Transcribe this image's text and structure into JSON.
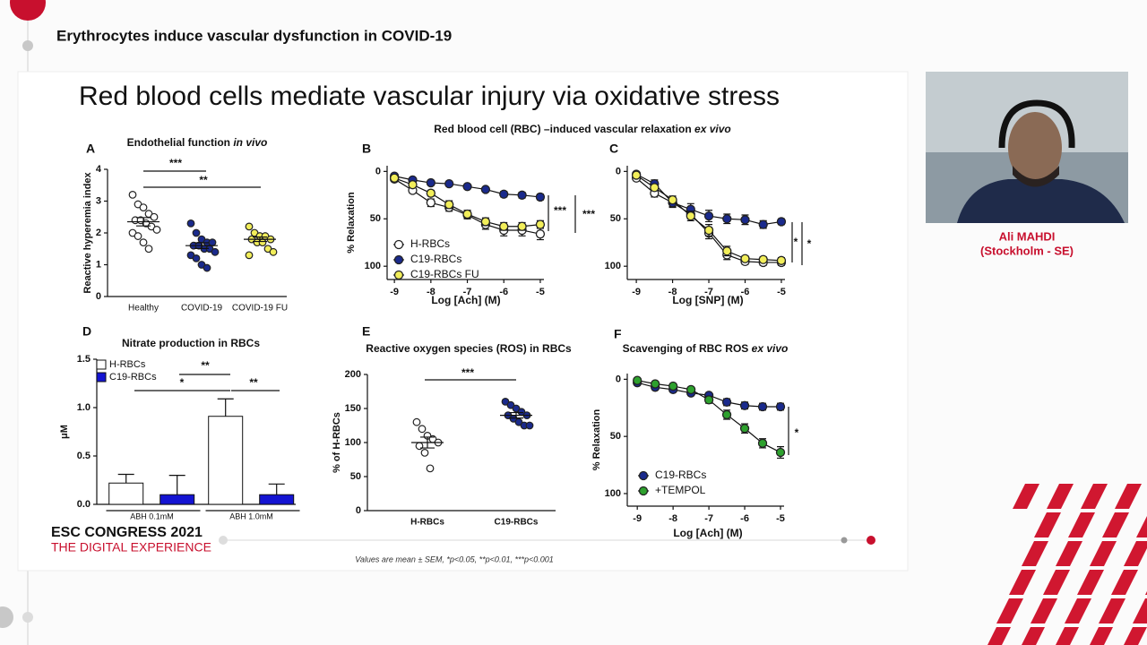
{
  "header": {
    "title": "Erythrocytes induce vascular dysfunction in COVID-19"
  },
  "slide": {
    "title": "Red blood cells mediate vascular injury via oxidative stress",
    "subtitle": "Red blood cell (RBC) –induced vascular relaxation",
    "subtitle_em": "ex vivo",
    "footnote": "Values are mean ± SEM, *p<0.05, **p<0.01, ***p<0.001",
    "logo_line1": "ESC CONGRESS 2021",
    "logo_line2": "THE DIGITAL EXPERIENCE"
  },
  "speaker": {
    "name": "Ali MAHDI",
    "location": "(Stockholm - SE)"
  },
  "chart_data": [
    {
      "type": "dot_plot",
      "panel": "A",
      "title": "Endothelial function",
      "title_em": "in vivo",
      "ylabel": "Reactive hyperemia index",
      "ylim": [
        0,
        4
      ],
      "yticks": [
        0,
        1,
        2,
        3,
        4
      ],
      "groups": [
        {
          "name": "Healthy",
          "color": "#ffffff",
          "values": [
            3.2,
            2.9,
            2.8,
            2.6,
            2.5,
            2.4,
            2.4,
            2.3,
            2.2,
            2.1,
            2.0,
            1.9,
            1.7,
            1.5
          ],
          "mean": 2.35,
          "sem": 0.13
        },
        {
          "name": "COVID-19",
          "color": "#1a2a8c",
          "values": [
            2.3,
            2.0,
            1.8,
            1.7,
            1.7,
            1.6,
            1.6,
            1.5,
            1.5,
            1.4,
            1.3,
            1.2,
            1.0,
            0.9
          ],
          "mean": 1.6,
          "sem": 0.09
        },
        {
          "name": "COVID-19 FU",
          "color": "#f2ee5a",
          "values": [
            2.2,
            2.0,
            1.9,
            1.9,
            1.8,
            1.8,
            1.7,
            1.7,
            1.5,
            1.4,
            1.3
          ],
          "mean": 1.8,
          "sem": 0.07
        }
      ],
      "annotations": [
        "***",
        "**"
      ]
    },
    {
      "type": "line",
      "panel": "B",
      "xlabel": "Log [Ach] (M)",
      "ylabel": "% Relaxation",
      "x": [
        -9,
        -8.5,
        -8,
        -7.5,
        -7,
        -6.5,
        -6,
        -5.5,
        -5
      ],
      "xlim": [
        -9.2,
        -4.9
      ],
      "xticks": [
        -9,
        -8,
        -7,
        -6,
        -5
      ],
      "ylim": [
        114,
        -6
      ],
      "yticks": [
        0,
        50,
        100
      ],
      "legend": "lower left",
      "series": [
        {
          "name": "H-RBCs",
          "color": "#ffffff",
          "values": [
            8,
            20,
            33,
            38,
            46,
            56,
            62,
            62,
            66
          ],
          "errors": [
            2,
            3,
            4,
            4,
            4,
            5,
            6,
            6,
            6
          ]
        },
        {
          "name": "C19-RBCs",
          "color": "#1a2a8c",
          "values": [
            5,
            9,
            12,
            13,
            16,
            19,
            24,
            25,
            27
          ],
          "errors": [
            1,
            2,
            2,
            2,
            2,
            2,
            3,
            3,
            3
          ]
        },
        {
          "name": "C19-RBCs FU",
          "color": "#f2ee5a",
          "values": [
            7,
            14,
            23,
            35,
            45,
            53,
            58,
            58,
            56
          ],
          "errors": [
            2,
            3,
            3,
            4,
            4,
            4,
            4,
            4,
            4
          ]
        }
      ],
      "annotations": [
        "***",
        "***"
      ]
    },
    {
      "type": "line",
      "panel": "C",
      "xlabel": "Log [SNP] (M)",
      "x": [
        -9,
        -8.5,
        -8,
        -7.5,
        -7,
        -6.5,
        -6,
        -5.5,
        -5
      ],
      "xlim": [
        -9.25,
        -4.9
      ],
      "xticks": [
        -9,
        -8,
        -7,
        -6,
        -5
      ],
      "ylim": [
        114,
        -6
      ],
      "yticks": [
        0,
        50,
        100
      ],
      "series": [
        {
          "color": "#ffffff",
          "values": [
            7,
            23,
            33,
            45,
            65,
            88,
            95,
            96,
            96
          ],
          "errors": [
            2,
            4,
            4,
            5,
            6,
            5,
            3,
            3,
            3
          ]
        },
        {
          "color": "#1a2a8c",
          "values": [
            3,
            13,
            33,
            40,
            47,
            50,
            51,
            56,
            53
          ],
          "errors": [
            2,
            4,
            5,
            6,
            6,
            5,
            5,
            4,
            3
          ]
        },
        {
          "color": "#f2ee5a",
          "values": [
            4,
            17,
            30,
            47,
            62,
            84,
            92,
            93,
            94
          ],
          "errors": [
            2,
            3,
            4,
            5,
            6,
            5,
            3,
            3,
            3
          ]
        }
      ],
      "annotations": [
        "*",
        "*"
      ]
    },
    {
      "type": "bar",
      "panel": "D",
      "title": "Nitrate production in RBCs",
      "ylabel": "μM",
      "categories": [
        "ABH 0.1mM",
        "ABH 1.0mM"
      ],
      "ylim": [
        0,
        1.5
      ],
      "yticks": [
        {
          "value": 0,
          "label": "0.0"
        },
        {
          "value": 0.5,
          "label": "0.5"
        },
        {
          "value": 1,
          "label": "1.0"
        },
        {
          "value": 1.5,
          "label": "1.5"
        }
      ],
      "legend": "upper left",
      "series": [
        {
          "name": "H-RBCs",
          "color": "#ffffff",
          "values": [
            0.22,
            0.91
          ],
          "errors": [
            0.09,
            0.18
          ]
        },
        {
          "name": "C19-RBCs",
          "color": "#1414d2",
          "values": [
            0.1,
            0.1
          ],
          "errors": [
            0.2,
            0.11
          ]
        }
      ],
      "annotations": [
        "**",
        "*",
        "**"
      ]
    },
    {
      "type": "dot_plot",
      "panel": "E",
      "title": "Reactive oxygen species (ROS) in RBCs",
      "ylabel": "% of H-RBCs",
      "ylim": [
        0,
        200
      ],
      "yticks": [
        0,
        50,
        100,
        150,
        200
      ],
      "groups": [
        {
          "name": "H-RBCs",
          "color": "#ffffff",
          "values": [
            130,
            120,
            110,
            105,
            100,
            95,
            85,
            62
          ],
          "mean": 100,
          "sem": 8
        },
        {
          "name": "C19-RBCs",
          "color": "#1a2a8c",
          "values": [
            160,
            155,
            150,
            145,
            140,
            140,
            135,
            130,
            125,
            125
          ],
          "mean": 140,
          "sem": 4
        }
      ],
      "annotations": [
        "***"
      ]
    },
    {
      "type": "line",
      "panel": "F",
      "title": "Scavenging of RBC ROS",
      "title_em": "ex vivo",
      "xlabel": "Log [Ach] (M)",
      "ylabel": "% Relaxation",
      "x": [
        -9,
        -8.5,
        -8,
        -7.5,
        -7,
        -6.5,
        -6,
        -5.5,
        -5
      ],
      "xlim": [
        -9.28,
        -4.9
      ],
      "xticks": [
        -9,
        -8,
        -7,
        -6,
        -5
      ],
      "ylim": [
        111,
        -5
      ],
      "yticks": [
        0,
        50,
        100
      ],
      "legend": "lower left",
      "series": [
        {
          "name": "C19-RBCs",
          "color": "#1a2a8c",
          "values": [
            3,
            7,
            9,
            12,
            14,
            20,
            23,
            24,
            24
          ],
          "errors": [
            1,
            2,
            2,
            2,
            2,
            3,
            3,
            3,
            3
          ]
        },
        {
          "name": "+TEMPOL",
          "color": "#2ea12e",
          "values": [
            1,
            4,
            6,
            9,
            18,
            31,
            43,
            56,
            64
          ],
          "errors": [
            1,
            2,
            2,
            2,
            3,
            4,
            4,
            4,
            5
          ]
        }
      ],
      "annotations": [
        "*"
      ]
    }
  ]
}
